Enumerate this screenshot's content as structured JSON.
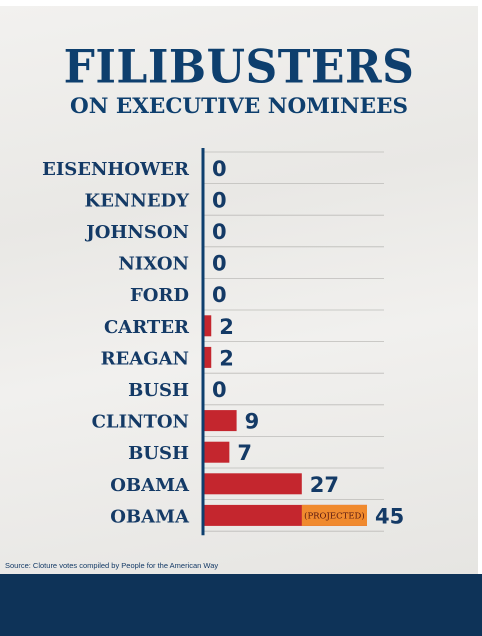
{
  "chart_data": {
    "type": "bar",
    "orientation": "horizontal",
    "title": "FILIBUSTERS",
    "subtitle": "ON EXECUTIVE NOMINEES",
    "categories": [
      "EISENHOWER",
      "KENNEDY",
      "JOHNSON",
      "NIXON",
      "FORD",
      "CARTER",
      "REAGAN",
      "BUSH",
      "CLINTON",
      "BUSH",
      "OBAMA",
      "OBAMA"
    ],
    "values": [
      0,
      0,
      0,
      0,
      0,
      2,
      2,
      0,
      9,
      7,
      27,
      45
    ],
    "value_labels": [
      "0",
      "0",
      "0",
      "0",
      "0",
      "2",
      "2",
      "0",
      "9",
      "7",
      "27",
      "45"
    ],
    "annotations": [
      {
        "category_index": 11,
        "text": "(PROJECTED)"
      }
    ],
    "source": "Source: Cloture votes compiled by People for the American Way",
    "xlim": [
      0,
      45
    ],
    "grid": true,
    "colors": {
      "bar": "#c4262e",
      "projected_overlay": "#f08a2e",
      "text": "#143a66",
      "axis": "#0e3f6e",
      "footer": "#0e3358"
    }
  }
}
